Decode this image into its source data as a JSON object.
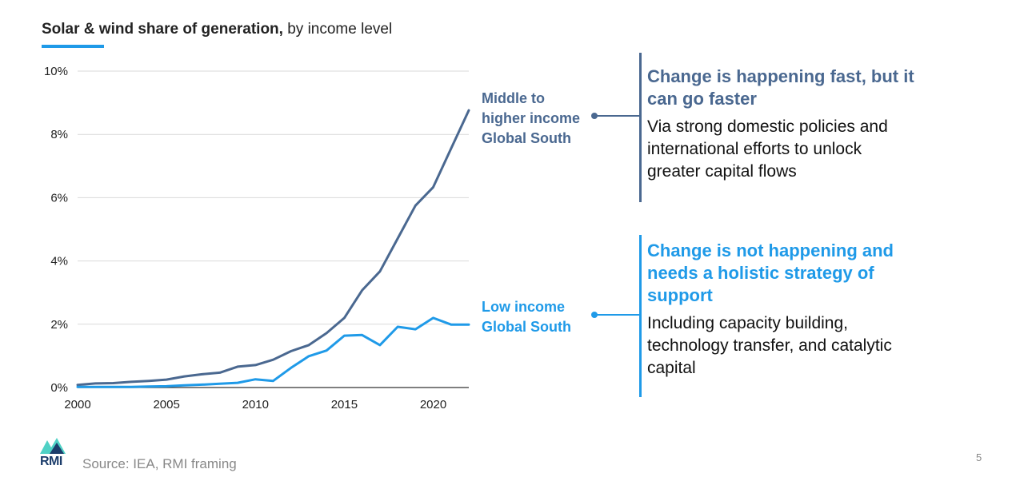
{
  "title": {
    "bold": "Solar & wind share of generation,",
    "normal": " by income level"
  },
  "chart_data": {
    "type": "line",
    "title": "Solar & wind share of generation, by income level",
    "xlabel": "",
    "ylabel": "",
    "xlim": [
      2000,
      2022
    ],
    "ylim": [
      0,
      10
    ],
    "yticks": [
      0,
      2,
      4,
      6,
      8,
      10
    ],
    "ytick_labels": [
      "0%",
      "2%",
      "4%",
      "6%",
      "8%",
      "10%"
    ],
    "xticks": [
      2000,
      2005,
      2010,
      2015,
      2020
    ],
    "xtick_labels": [
      "2000",
      "2005",
      "2010",
      "2015",
      "2020"
    ],
    "grid": "horizontal",
    "x": [
      2000,
      2001,
      2002,
      2003,
      2004,
      2005,
      2006,
      2007,
      2008,
      2009,
      2010,
      2011,
      2012,
      2013,
      2014,
      2015,
      2016,
      2017,
      2018,
      2019,
      2020,
      2021,
      2022
    ],
    "series": [
      {
        "name": "Middle to higher income Global South",
        "color": "#4a6890",
        "values": [
          0.08,
          0.13,
          0.14,
          0.18,
          0.21,
          0.25,
          0.35,
          0.42,
          0.47,
          0.66,
          0.71,
          0.88,
          1.15,
          1.34,
          1.72,
          2.2,
          3.07,
          3.67,
          4.71,
          5.75,
          6.33,
          7.55,
          8.76
        ]
      },
      {
        "name": "Low income Global South",
        "color": "#1f9ae8",
        "values": [
          0.02,
          0.02,
          0.02,
          0.02,
          0.03,
          0.04,
          0.07,
          0.09,
          0.12,
          0.15,
          0.26,
          0.21,
          0.62,
          0.99,
          1.17,
          1.64,
          1.66,
          1.34,
          1.92,
          1.84,
          2.2,
          1.99,
          1.99
        ]
      }
    ]
  },
  "labels": {
    "mid": "Middle to\nhigher income\nGlobal South",
    "low": "Low income\nGlobal South"
  },
  "callouts": {
    "mid": {
      "heading": "Change is happening fast, but it can go faster",
      "body": "Via strong domestic policies and international efforts to unlock greater capital flows"
    },
    "low": {
      "heading": "Change is not happening and needs a holistic strategy of support",
      "body": "Including capacity building, technology transfer, and catalytic capital"
    }
  },
  "footer": {
    "logo_text": "RMI",
    "source": "Source: IEA, RMI framing",
    "page_number": "5"
  },
  "colors": {
    "accent": "#1f9ae8",
    "navy": "#4a6890"
  }
}
